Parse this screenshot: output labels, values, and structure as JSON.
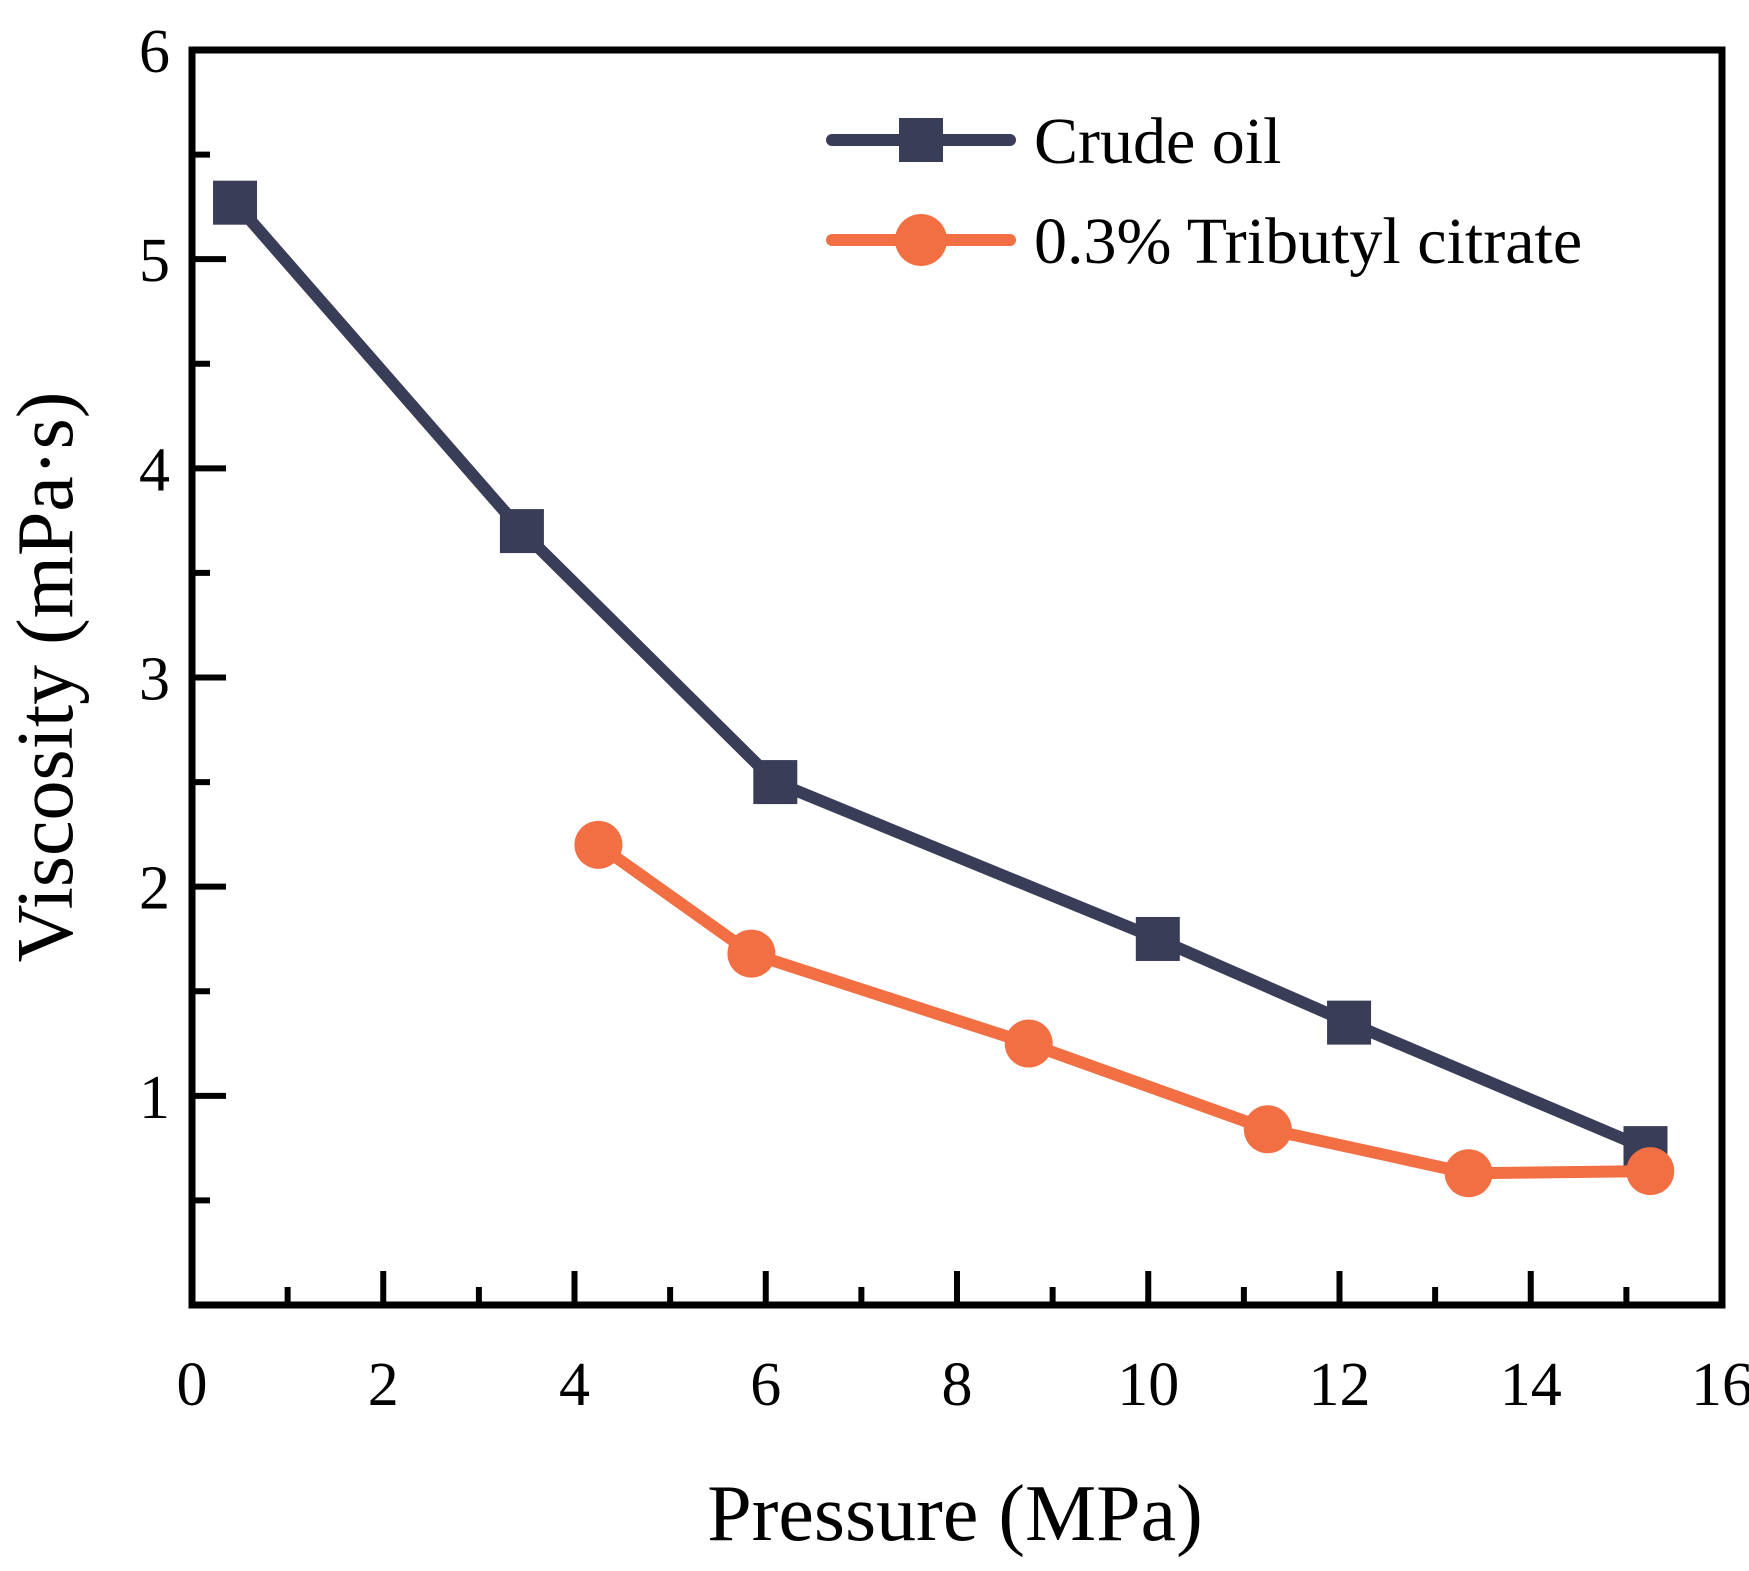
{
  "chart_data": {
    "type": "line",
    "title": "",
    "xlabel": "Pressure (MPa)",
    "ylabel": "Viscosity (mPa·s)",
    "xlim": [
      0,
      16
    ],
    "ylim": [
      0,
      6
    ],
    "xticks": [
      0,
      2,
      4,
      6,
      8,
      10,
      12,
      14,
      16
    ],
    "xtick_labels": [
      "0",
      "2",
      "4",
      "6",
      "8",
      "10",
      "12",
      "14",
      "16"
    ],
    "yticks": [
      1,
      2,
      3,
      4,
      5,
      6
    ],
    "ytick_labels": [
      "1",
      "2",
      "3",
      "4",
      "5",
      "6"
    ],
    "x_minor_step": 1,
    "y_minor_step": 0.5,
    "grid": false,
    "legend_position": "top-right",
    "series": [
      {
        "name": "Crude oil",
        "marker": "square",
        "color": "#3a3d58",
        "x": [
          0.45,
          3.45,
          6.1,
          10.1,
          12.1,
          15.2
        ],
        "y": [
          5.27,
          3.7,
          2.5,
          1.75,
          1.35,
          0.75
        ]
      },
      {
        "name": "0.3% Tributyl citrate",
        "marker": "circle",
        "color": "#f26f43",
        "x": [
          4.25,
          5.85,
          8.75,
          11.25,
          13.35,
          15.25
        ],
        "y": [
          2.2,
          1.68,
          1.25,
          0.84,
          0.63,
          0.64
        ]
      }
    ]
  }
}
